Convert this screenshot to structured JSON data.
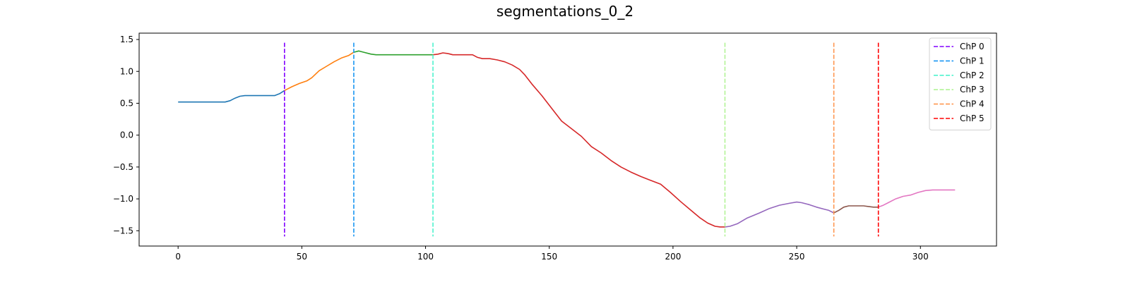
{
  "chart_data": {
    "type": "line",
    "title": "segmentations_0_2",
    "xlabel": "",
    "ylabel": "",
    "xlim": [
      -15.75,
      330.75
    ],
    "ylim": [
      -1.74,
      1.6
    ],
    "x_ticks": [
      0,
      50,
      100,
      150,
      200,
      250,
      300
    ],
    "y_ticks": [
      1.5,
      1.0,
      0.5,
      0.0,
      -0.5,
      -1.0,
      -1.5
    ],
    "y_tick_labels": [
      "1.5",
      "1.0",
      "0.5",
      "0.0",
      "−0.5",
      "−1.0",
      "−1.5"
    ],
    "grid": false,
    "legend_position": "top-right",
    "segments": [
      {
        "color": "#1f77b4",
        "points": [
          [
            0,
            0.52
          ],
          [
            19,
            0.52
          ],
          [
            21,
            0.54
          ],
          [
            23,
            0.58
          ],
          [
            25,
            0.61
          ],
          [
            27,
            0.62
          ],
          [
            39,
            0.62
          ],
          [
            41,
            0.65
          ],
          [
            43,
            0.7
          ]
        ]
      },
      {
        "color": "#ff7f0e",
        "points": [
          [
            43,
            0.7
          ],
          [
            46,
            0.76
          ],
          [
            49,
            0.81
          ],
          [
            52,
            0.85
          ],
          [
            54,
            0.9
          ],
          [
            57,
            1.01
          ],
          [
            60,
            1.08
          ],
          [
            63,
            1.15
          ],
          [
            66,
            1.21
          ],
          [
            69,
            1.25
          ],
          [
            71,
            1.3
          ]
        ]
      },
      {
        "color": "#2ca02c",
        "points": [
          [
            71,
            1.3
          ],
          [
            73,
            1.32
          ],
          [
            75,
            1.3
          ],
          [
            78,
            1.27
          ],
          [
            80,
            1.26
          ],
          [
            90,
            1.26
          ],
          [
            103,
            1.26
          ]
        ]
      },
      {
        "color": "#d62728",
        "points": [
          [
            103,
            1.26
          ],
          [
            105,
            1.27
          ],
          [
            107,
            1.29
          ],
          [
            109,
            1.28
          ],
          [
            111,
            1.26
          ],
          [
            119,
            1.26
          ],
          [
            121,
            1.22
          ],
          [
            123,
            1.2
          ],
          [
            126,
            1.2
          ],
          [
            129,
            1.18
          ],
          [
            132,
            1.15
          ],
          [
            135,
            1.1
          ],
          [
            138,
            1.03
          ],
          [
            140,
            0.95
          ],
          [
            143,
            0.8
          ],
          [
            147,
            0.62
          ],
          [
            151,
            0.42
          ],
          [
            155,
            0.22
          ],
          [
            159,
            0.1
          ],
          [
            163,
            -0.02
          ],
          [
            167,
            -0.18
          ],
          [
            171,
            -0.28
          ],
          [
            175,
            -0.4
          ],
          [
            179,
            -0.5
          ],
          [
            183,
            -0.58
          ],
          [
            187,
            -0.65
          ],
          [
            191,
            -0.71
          ],
          [
            195,
            -0.77
          ],
          [
            199,
            -0.9
          ],
          [
            203,
            -1.04
          ],
          [
            207,
            -1.17
          ],
          [
            211,
            -1.3
          ],
          [
            214,
            -1.38
          ],
          [
            217,
            -1.43
          ],
          [
            219,
            -1.44
          ],
          [
            221,
            -1.44
          ]
        ]
      },
      {
        "color": "#9467bd",
        "points": [
          [
            221,
            -1.44
          ],
          [
            223,
            -1.43
          ],
          [
            226,
            -1.39
          ],
          [
            230,
            -1.3
          ],
          [
            235,
            -1.22
          ],
          [
            239,
            -1.15
          ],
          [
            243,
            -1.1
          ],
          [
            247,
            -1.07
          ],
          [
            250,
            -1.05
          ],
          [
            252,
            -1.06
          ],
          [
            255,
            -1.09
          ],
          [
            258,
            -1.13
          ],
          [
            261,
            -1.16
          ],
          [
            263,
            -1.18
          ],
          [
            265,
            -1.22
          ]
        ]
      },
      {
        "color": "#8c564b",
        "points": [
          [
            265,
            -1.22
          ],
          [
            267,
            -1.18
          ],
          [
            269,
            -1.13
          ],
          [
            271,
            -1.11
          ],
          [
            277,
            -1.11
          ],
          [
            279,
            -1.12
          ],
          [
            281,
            -1.13
          ],
          [
            283,
            -1.13
          ]
        ]
      },
      {
        "color": "#e377c2",
        "points": [
          [
            283,
            -1.13
          ],
          [
            285,
            -1.1
          ],
          [
            287,
            -1.06
          ],
          [
            290,
            -1.0
          ],
          [
            293,
            -0.96
          ],
          [
            296,
            -0.94
          ],
          [
            299,
            -0.9
          ],
          [
            302,
            -0.87
          ],
          [
            305,
            -0.86
          ],
          [
            310,
            -0.86
          ],
          [
            314,
            -0.86
          ]
        ]
      }
    ],
    "changepoints": [
      {
        "name": "ChP 0",
        "x": 43,
        "color": "#8000ff"
      },
      {
        "name": "ChP 1",
        "x": 71,
        "color": "#1996f3"
      },
      {
        "name": "ChP 2",
        "x": 103,
        "color": "#4df3ce"
      },
      {
        "name": "ChP 3",
        "x": 221,
        "color": "#b2f396"
      },
      {
        "name": "ChP 4",
        "x": 265,
        "color": "#ff964f"
      },
      {
        "name": "ChP 5",
        "x": 283,
        "color": "#ff0000"
      }
    ],
    "changepoint_y_range": [
      -1.59,
      1.45
    ]
  }
}
